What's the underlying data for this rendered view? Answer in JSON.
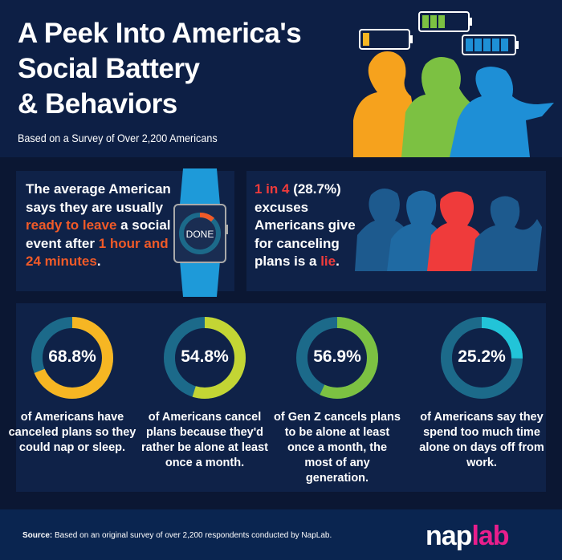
{
  "header": {
    "title_lines": [
      "A Peek Into America's",
      "Social Battery",
      "& Behaviors"
    ],
    "subtitle": "Based on a Survey of Over 2,200 Americans"
  },
  "fact1": {
    "t1": "The average American says they are usually ",
    "h1": "ready to leave",
    "t2": " a social event after ",
    "h2": "1 hour and 24 minutes",
    "t3": ".",
    "watch_label": "DONE"
  },
  "fact2": {
    "h1": "1 in 4",
    "t1": " (28.7%) excuses Americans give for canceling plans is a ",
    "h2": "lie",
    "t2": "."
  },
  "stats": [
    {
      "value": "68.8%",
      "percent": 68.8,
      "color": "#f6b623",
      "caption": "of Americans have canceled plans so they could nap or sleep."
    },
    {
      "value": "54.8%",
      "percent": 54.8,
      "color": "#c3d534",
      "caption": "of Americans cancel plans because they'd rather be alone at least once a month."
    },
    {
      "value": "56.9%",
      "percent": 56.9,
      "color": "#7cc142",
      "caption": "of Gen Z cancels plans to be alone at least once a month, the most of any generation."
    },
    {
      "value": "25.2%",
      "percent": 25.2,
      "color": "#22c4d8",
      "caption": "of Americans say they spend too much time alone on days off from work."
    }
  ],
  "colors": {
    "track": "#1c6a8a",
    "accent_orange": "#f05a28",
    "accent_red": "#ef3b3b",
    "brand_pink": "#e91e8c"
  },
  "footer": {
    "source_label": "Source:",
    "source_text": " Based on an original survey of over 2,200 respondents conducted by NapLab.",
    "logo_a": "nap",
    "logo_b": "lab"
  }
}
